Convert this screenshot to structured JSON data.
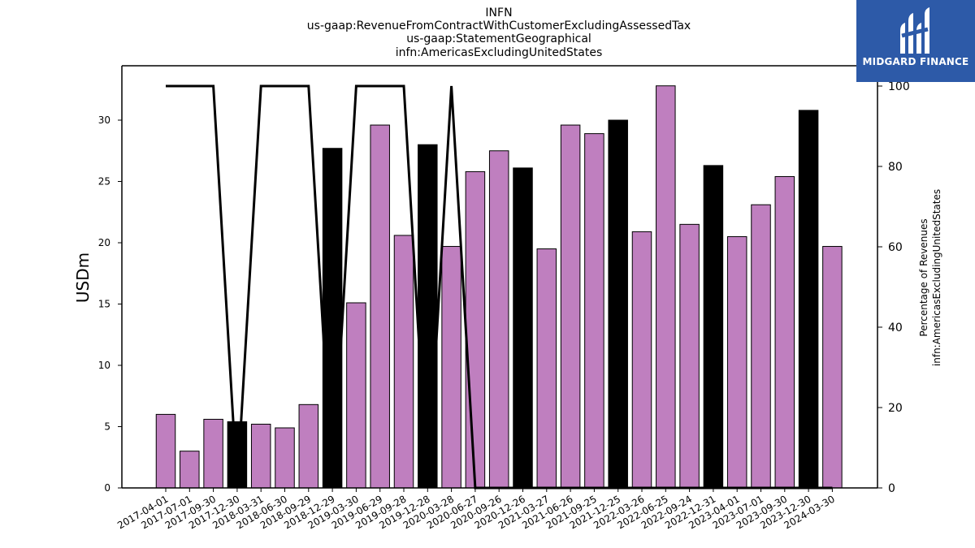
{
  "chart_data": {
    "type": "bar",
    "title_lines": [
      "INFN",
      "us-gaap:RevenueFromContractWithCustomerExcludingAssessedTax",
      "us-gaap:StatementGeographical",
      "infn:AmericasExcludingUnitedStates"
    ],
    "ylabel": "USDm",
    "ylabel_right_lines": [
      "Percentage of Revenues",
      "infn:AmericasExcludingUnitedStates"
    ],
    "ylim": [
      0,
      33.5
    ],
    "yticks": [
      0,
      5,
      10,
      15,
      20,
      25,
      30
    ],
    "ylim_right": [
      0,
      100
    ],
    "yticks_right": [
      0,
      20,
      40,
      60,
      80,
      100
    ],
    "categories": [
      "2017-04-01",
      "2017-07-01",
      "2017-09-30",
      "2017-12-30",
      "2018-03-31",
      "2018-06-30",
      "2018-09-29",
      "2018-12-29",
      "2019-03-30",
      "2019-06-29",
      "2019-09-28",
      "2019-12-28",
      "2020-03-28",
      "2020-06-27",
      "2020-09-26",
      "2020-12-26",
      "2021-03-27",
      "2021-06-26",
      "2021-09-25",
      "2021-12-25",
      "2022-03-26",
      "2022-06-25",
      "2022-09-24",
      "2022-12-31",
      "2023-04-01",
      "2023-07-01",
      "2023-09-30",
      "2023-12-30",
      "2024-03-30"
    ],
    "values": [
      6.0,
      3.0,
      5.6,
      5.4,
      5.2,
      4.9,
      6.8,
      27.7,
      15.1,
      29.6,
      20.6,
      28.0,
      19.7,
      25.8,
      27.5,
      26.1,
      19.5,
      29.6,
      28.9,
      30.0,
      20.9,
      32.8,
      21.5,
      26.3,
      20.5,
      23.1,
      25.4,
      30.8,
      19.7
    ],
    "highlight": [
      false,
      false,
      false,
      true,
      false,
      false,
      false,
      true,
      false,
      false,
      false,
      true,
      false,
      false,
      false,
      true,
      false,
      false,
      false,
      true,
      false,
      false,
      false,
      true,
      false,
      false,
      false,
      true,
      false
    ],
    "colors": {
      "bar": "#bf7fbf",
      "highlight": "#000000",
      "line": "#000000"
    },
    "line": {
      "values": [
        100,
        100,
        100,
        0,
        100,
        100,
        100,
        0,
        100,
        100,
        100,
        0,
        100,
        0,
        0,
        0,
        0,
        0,
        0,
        0,
        0,
        0,
        0,
        0,
        0,
        0,
        0,
        0,
        0
      ]
    },
    "grid": false,
    "legend": "none"
  },
  "logo": {
    "text": "MIDGARD FINANCE",
    "background": "#2d5aa8"
  }
}
